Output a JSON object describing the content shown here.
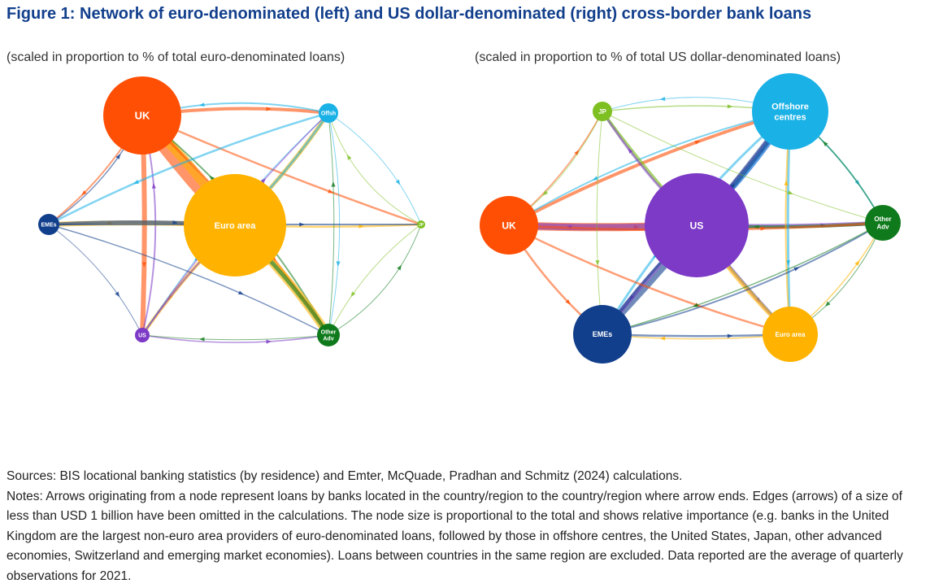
{
  "title": "Figure 1: Network of euro-denominated (left) and US dollar-denominated (right) cross-border bank loans",
  "subtitle_left": "(scaled in proportion to % of total euro-denominated loans)",
  "subtitle_right": "(scaled in proportion to % of total US dollar-denominated loans)",
  "colors": {
    "uk": "#ff4f05",
    "euro_area": "#ffb300",
    "offshore": "#1ab1e6",
    "jp": "#7ebf21",
    "emes": "#123f8c",
    "us": "#7c3ac6",
    "other_adv": "#0f7a1c"
  },
  "left_network": {
    "nodes": [
      {
        "id": "uk",
        "label": "UK",
        "color": "#ff4f05"
      },
      {
        "id": "ea",
        "label": "Euro area",
        "color": "#ffb300"
      },
      {
        "id": "offsh",
        "label": "Offsh",
        "color": "#1ab1e6"
      },
      {
        "id": "jp",
        "label": "JP",
        "color": "#7ebf21"
      },
      {
        "id": "emes",
        "label": "EMEs",
        "color": "#123f8c"
      },
      {
        "id": "us",
        "label": "US",
        "color": "#7c3ac6"
      },
      {
        "id": "oa",
        "label": "Other Adv",
        "label_lines": [
          "Other",
          "Adv"
        ],
        "color": "#0f7a1c"
      }
    ]
  },
  "right_network": {
    "nodes": [
      {
        "id": "jp",
        "label": "JP",
        "color": "#7ebf21"
      },
      {
        "id": "offsh",
        "label": "Offshore centres",
        "label_lines": [
          "Offshore",
          "centres"
        ],
        "color": "#1ab1e6"
      },
      {
        "id": "uk",
        "label": "UK",
        "color": "#ff4f05"
      },
      {
        "id": "us",
        "label": "US",
        "color": "#7c3ac6"
      },
      {
        "id": "oa",
        "label": "Other Adv",
        "label_lines": [
          "Other",
          "Adv"
        ],
        "color": "#0f7a1c"
      },
      {
        "id": "emes",
        "label": "EMEs",
        "color": "#123f8c"
      },
      {
        "id": "ea",
        "label": "Euro area",
        "color": "#ffb300"
      }
    ]
  },
  "footer": {
    "sources": "Sources: BIS locational banking statistics (by residence) and Emter, McQuade, Pradhan and Schmitz (2024) calculations.",
    "notes": "Notes: Arrows originating from a node represent loans by banks located in the country/region to the country/region where arrow ends. Edges (arrows) of a size of less than USD 1 billion have been omitted in the calculations. The node size is proportional to the total and shows relative importance (e.g. banks in the United Kingdom are the largest non-euro area providers of euro-denominated loans, followed by those in offshore centres, the United States, Japan, other advanced economies, Switzerland and emerging market economies). Loans between countries in the same region are excluded. Data reported are the average of quarterly observations for 2021."
  }
}
